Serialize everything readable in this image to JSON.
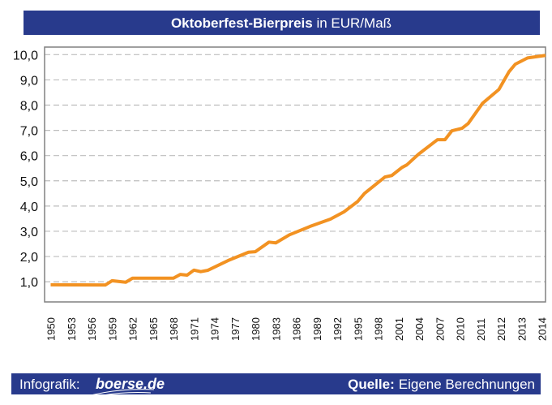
{
  "colors": {
    "banner": "#283a8c",
    "line": "#f29222",
    "grid": "#bdbdbd",
    "frame": "#808080"
  },
  "header": {
    "title_bold": "Oktoberfest-Bierpreis",
    "title_rest": " in EUR/Maß"
  },
  "footer": {
    "infografik_label": "Infografik:",
    "logo_text": "boerse.de",
    "source_label": "Quelle:",
    "source_text": "Eigene Berechnungen"
  },
  "chart_data": {
    "type": "line",
    "title": "Oktoberfest-Bierpreis in EUR/Maß",
    "xlabel": "",
    "ylabel": "",
    "ylim": [
      0.2,
      10.3
    ],
    "grid": true,
    "legend": "none",
    "x_tick_labels": [
      "1950",
      "1953",
      "1956",
      "1959",
      "1962",
      "1965",
      "1968",
      "1971",
      "1974",
      "1977",
      "1980",
      "1983",
      "1986",
      "1989",
      "1992",
      "1995",
      "1998",
      "2001",
      "2004",
      "2007",
      "2010",
      "2011",
      "2012",
      "2013",
      "2014"
    ],
    "y_ticks": [
      1,
      2,
      3,
      4,
      5,
      6,
      7,
      8,
      9,
      10
    ],
    "y_tick_labels": [
      "1,0",
      "2,0",
      "3,0",
      "4,0",
      "5,0",
      "6,0",
      "7,0",
      "8,0",
      "9,0",
      "10,0"
    ],
    "series": [
      {
        "color": "#f29222",
        "points": [
          [
            1950,
            0.88
          ],
          [
            1958,
            0.87
          ],
          [
            1959,
            1.04
          ],
          [
            1961,
            0.98
          ],
          [
            1962,
            1.14
          ],
          [
            1968,
            1.14
          ],
          [
            1969,
            1.29
          ],
          [
            1970,
            1.26
          ],
          [
            1971,
            1.46
          ],
          [
            1972,
            1.4
          ],
          [
            1973,
            1.45
          ],
          [
            1976,
            1.84
          ],
          [
            1979,
            2.17
          ],
          [
            1980,
            2.19
          ],
          [
            1982,
            2.57
          ],
          [
            1983,
            2.54
          ],
          [
            1985,
            2.86
          ],
          [
            1988,
            3.19
          ],
          [
            1991,
            3.48
          ],
          [
            1993,
            3.77
          ],
          [
            1995,
            4.18
          ],
          [
            1996,
            4.5
          ],
          [
            1999,
            5.15
          ],
          [
            2000,
            5.21
          ],
          [
            2001.5,
            5.53
          ],
          [
            2002.2,
            5.63
          ],
          [
            2003.9,
            6.05
          ],
          [
            2006.7,
            6.63
          ],
          [
            2007.8,
            6.63
          ],
          [
            2008.8,
            6.98
          ],
          [
            2010.1,
            7.08
          ],
          [
            2010.4,
            7.27
          ],
          [
            2011.1,
            8.07
          ],
          [
            2011.9,
            8.62
          ],
          [
            2012.4,
            9.33
          ],
          [
            2012.7,
            9.62
          ],
          [
            2013.3,
            9.87
          ],
          [
            2014.2,
            9.97
          ]
        ]
      }
    ]
  }
}
